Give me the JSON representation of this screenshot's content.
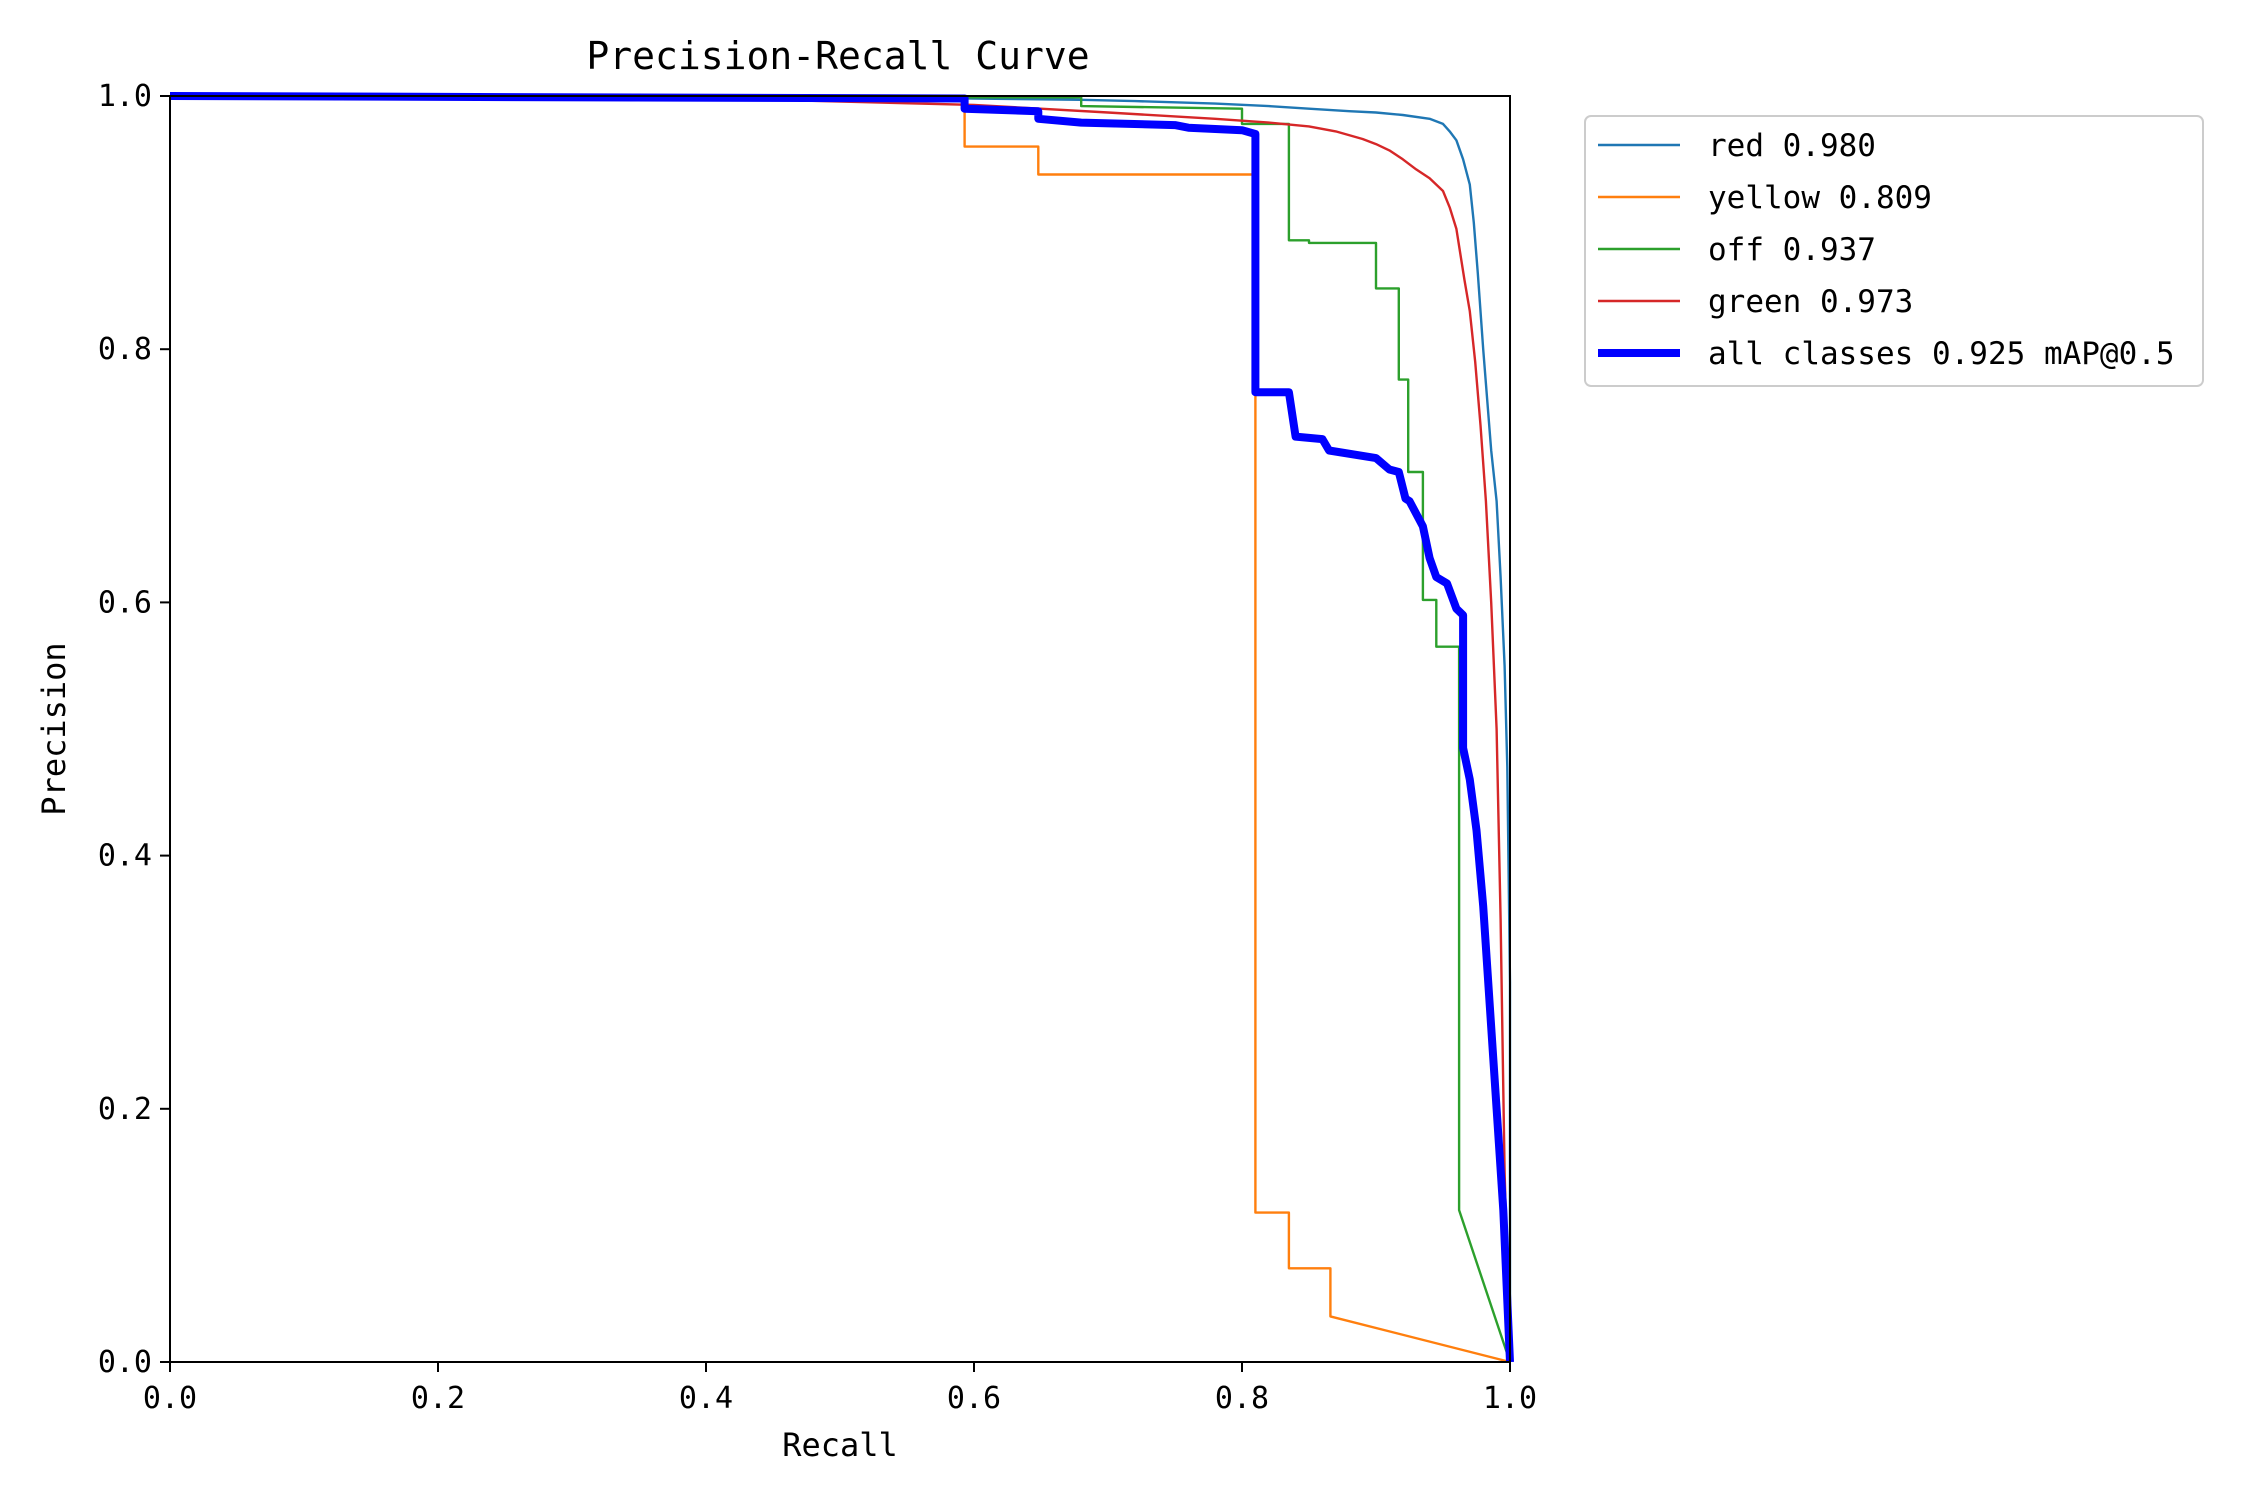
{
  "chart_data": {
    "type": "line",
    "title": "Precision-Recall Curve",
    "xlabel": "Recall",
    "ylabel": "Precision",
    "xlim": [
      0,
      1
    ],
    "ylim": [
      0,
      1
    ],
    "xticks": [
      "0.0",
      "0.2",
      "0.4",
      "0.6",
      "0.8",
      "1.0"
    ],
    "yticks": [
      "0.0",
      "0.2",
      "0.4",
      "0.6",
      "0.8",
      "1.0"
    ],
    "grid": false,
    "legend_position": "outside-top-right",
    "series": [
      {
        "name": "red 0.980",
        "color": "#1f77b4",
        "linewidth": "thin",
        "x": [
          0,
          0.3,
          0.55,
          0.6,
          0.68,
          0.72,
          0.78,
          0.82,
          0.85,
          0.88,
          0.9,
          0.92,
          0.94,
          0.95,
          0.955,
          0.96,
          0.965,
          0.97,
          0.973,
          0.976,
          0.98,
          0.983,
          0.986,
          0.99,
          0.993,
          0.996,
          0.998,
          1.0,
          1.0
        ],
        "y": [
          1.0,
          0.999,
          0.999,
          0.998,
          0.997,
          0.996,
          0.994,
          0.992,
          0.99,
          0.988,
          0.987,
          0.985,
          0.982,
          0.978,
          0.972,
          0.965,
          0.95,
          0.93,
          0.9,
          0.86,
          0.8,
          0.76,
          0.72,
          0.68,
          0.62,
          0.55,
          0.47,
          0.3,
          0.0
        ]
      },
      {
        "name": "yellow 0.809",
        "color": "#ff7f0e",
        "linewidth": "thin",
        "x": [
          0,
          0.45,
          0.593,
          0.593,
          0.648,
          0.648,
          0.81,
          0.81,
          0.835,
          0.835,
          0.866,
          0.866,
          1.0
        ],
        "y": [
          1.0,
          0.998,
          0.998,
          0.96,
          0.96,
          0.938,
          0.938,
          0.118,
          0.118,
          0.074,
          0.074,
          0.036,
          0.0
        ]
      },
      {
        "name": "off 0.937",
        "color": "#2ca02c",
        "linewidth": "thin",
        "x": [
          0,
          0.6,
          0.68,
          0.68,
          0.8,
          0.8,
          0.835,
          0.835,
          0.85,
          0.85,
          0.9,
          0.9,
          0.917,
          0.917,
          0.924,
          0.924,
          0.935,
          0.935,
          0.945,
          0.945,
          0.962,
          0.962,
          1.0
        ],
        "y": [
          1.0,
          0.999,
          0.999,
          0.992,
          0.99,
          0.978,
          0.978,
          0.886,
          0.886,
          0.884,
          0.884,
          0.848,
          0.848,
          0.776,
          0.776,
          0.703,
          0.703,
          0.602,
          0.602,
          0.565,
          0.565,
          0.12,
          0.0
        ]
      },
      {
        "name": "green 0.973",
        "color": "#d62728",
        "linewidth": "thin",
        "x": [
          0,
          0.3,
          0.45,
          0.6,
          0.7,
          0.78,
          0.82,
          0.85,
          0.87,
          0.89,
          0.9,
          0.91,
          0.92,
          0.93,
          0.94,
          0.95,
          0.955,
          0.96,
          0.963,
          0.966,
          0.97,
          0.974,
          0.978,
          0.982,
          0.986,
          0.99,
          0.993,
          0.996,
          1.0
        ],
        "y": [
          1.0,
          0.999,
          0.997,
          0.993,
          0.987,
          0.982,
          0.979,
          0.976,
          0.972,
          0.966,
          0.962,
          0.957,
          0.95,
          0.942,
          0.935,
          0.925,
          0.912,
          0.895,
          0.875,
          0.855,
          0.83,
          0.79,
          0.74,
          0.68,
          0.6,
          0.5,
          0.35,
          0.15,
          0.0
        ]
      },
      {
        "name": "all classes 0.925 mAP@0.5",
        "color": "#0000ff",
        "linewidth": "thick",
        "x": [
          0,
          0.593,
          0.593,
          0.648,
          0.648,
          0.68,
          0.75,
          0.76,
          0.8,
          0.81,
          0.81,
          0.835,
          0.84,
          0.86,
          0.865,
          0.9,
          0.91,
          0.917,
          0.922,
          0.925,
          0.935,
          0.94,
          0.945,
          0.953,
          0.96,
          0.965,
          0.965,
          0.97,
          0.975,
          0.98,
          0.985,
          0.99,
          0.995,
          1.0
        ],
        "y": [
          1.0,
          0.998,
          0.99,
          0.988,
          0.982,
          0.979,
          0.977,
          0.975,
          0.973,
          0.97,
          0.766,
          0.766,
          0.731,
          0.729,
          0.72,
          0.714,
          0.705,
          0.703,
          0.682,
          0.68,
          0.66,
          0.635,
          0.62,
          0.615,
          0.595,
          0.59,
          0.485,
          0.46,
          0.42,
          0.36,
          0.28,
          0.2,
          0.12,
          0.0
        ]
      }
    ]
  }
}
